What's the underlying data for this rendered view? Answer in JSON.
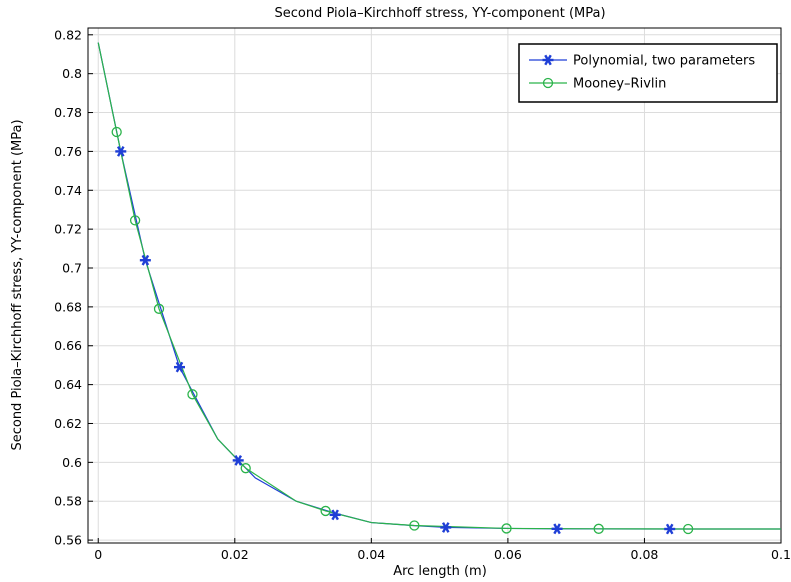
{
  "chart_data": {
    "type": "line",
    "title": "Second Piola–Kirchhoff stress, YY-component (MPa)",
    "xlabel": "Arc length (m)",
    "ylabel": "Second Piola–Kirchhoff stress, YY-component (MPa)",
    "xlim": [
      -0.0015,
      0.1
    ],
    "ylim": [
      0.5585,
      0.8235
    ],
    "xticks": [
      0,
      0.02,
      0.04,
      0.06,
      0.08,
      0.1
    ],
    "xtick_labels": [
      "0",
      "0.02",
      "0.04",
      "0.06",
      "0.08",
      "0.1"
    ],
    "yticks": [
      0.56,
      0.58,
      0.6,
      0.62,
      0.64,
      0.66,
      0.68,
      0.7,
      0.72,
      0.74,
      0.76,
      0.78,
      0.8,
      0.82
    ],
    "ytick_labels": [
      "0.56",
      "0.58",
      "0.6",
      "0.62",
      "0.64",
      "0.66",
      "0.68",
      "0.7",
      "0.72",
      "0.74",
      "0.76",
      "0.78",
      "0.8",
      "0.82"
    ],
    "grid": true,
    "legend_position": "top-right",
    "series": [
      {
        "name": "Polynomial, two parameters",
        "color": "#1f3fd6",
        "marker": "asterisk",
        "x": [
          0,
          0.0033,
          0.0069,
          0.0119,
          0.0175,
          0.0205,
          0.023,
          0.029,
          0.0345,
          0.04,
          0.046,
          0.051,
          0.06,
          0.067,
          0.08,
          0.0837,
          0.1
        ],
        "y": [
          0.816,
          0.76,
          0.704,
          0.649,
          0.612,
          0.601,
          0.592,
          0.58,
          0.574,
          0.569,
          0.5675,
          0.5665,
          0.566,
          0.5658,
          0.5657,
          0.5657,
          0.5657
        ],
        "marker_x": [
          0.0033,
          0.0069,
          0.0119,
          0.0205,
          0.0347,
          0.0509,
          0.0672,
          0.0837
        ],
        "marker_y": [
          0.76,
          0.704,
          0.649,
          0.601,
          0.573,
          0.5665,
          0.5658,
          0.5657
        ]
      },
      {
        "name": "Mooney–Rivlin",
        "color": "#2ab34a",
        "marker": "circle",
        "x": [
          0,
          0.0027,
          0.0054,
          0.0089,
          0.0138,
          0.0175,
          0.0216,
          0.029,
          0.0333,
          0.04,
          0.0463,
          0.06,
          0.0733,
          0.0864,
          0.1
        ],
        "y": [
          0.816,
          0.77,
          0.7245,
          0.679,
          0.635,
          0.612,
          0.597,
          0.58,
          0.575,
          0.569,
          0.5675,
          0.566,
          0.5658,
          0.5657,
          0.5657
        ],
        "marker_x": [
          0.0027,
          0.0054,
          0.0089,
          0.0138,
          0.0216,
          0.0333,
          0.0463,
          0.0598,
          0.0733,
          0.0864
        ],
        "marker_y": [
          0.77,
          0.7245,
          0.679,
          0.635,
          0.597,
          0.575,
          0.5675,
          0.566,
          0.5658,
          0.5657
        ]
      }
    ]
  }
}
